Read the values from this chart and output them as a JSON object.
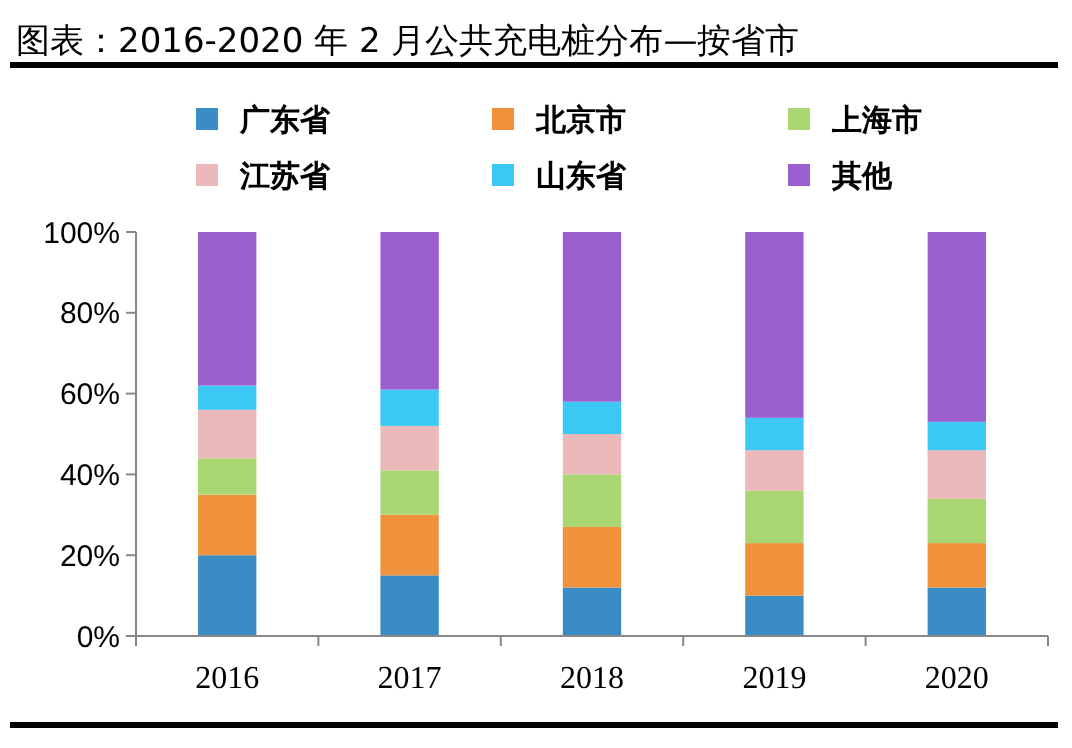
{
  "chart_data": {
    "type": "bar",
    "title": "图表：2016-2020 年 2 月公共充电桩分布—按省市",
    "categories": [
      "2016",
      "2017",
      "2018",
      "2019",
      "2020"
    ],
    "stacked": true,
    "legend": "top",
    "series": [
      {
        "name": "广东省",
        "color": "#3b8cc4",
        "values": [
          20,
          15,
          12,
          10,
          12
        ]
      },
      {
        "name": "北京市",
        "color": "#f0923c",
        "values": [
          15,
          15,
          15,
          13,
          11
        ]
      },
      {
        "name": "上海市",
        "color": "#a9d672",
        "values": [
          9,
          11,
          13,
          13,
          11
        ]
      },
      {
        "name": "江苏省",
        "color": "#ebb9b9",
        "values": [
          12,
          11,
          10,
          10,
          12
        ]
      },
      {
        "name": "山东省",
        "color": "#3cc8f5",
        "values": [
          6,
          9,
          8,
          8,
          7
        ]
      },
      {
        "name": "其他",
        "color": "#9b5fcf",
        "values": [
          38,
          39,
          42,
          46,
          47
        ]
      }
    ],
    "ylim": [
      0,
      100
    ],
    "yticks": [
      {
        "value": 0,
        "label": "0%"
      },
      {
        "value": 20,
        "label": "20%"
      },
      {
        "value": 40,
        "label": "40%"
      },
      {
        "value": 60,
        "label": "60%"
      },
      {
        "value": 80,
        "label": "80%"
      },
      {
        "value": 100,
        "label": "100%"
      }
    ]
  }
}
